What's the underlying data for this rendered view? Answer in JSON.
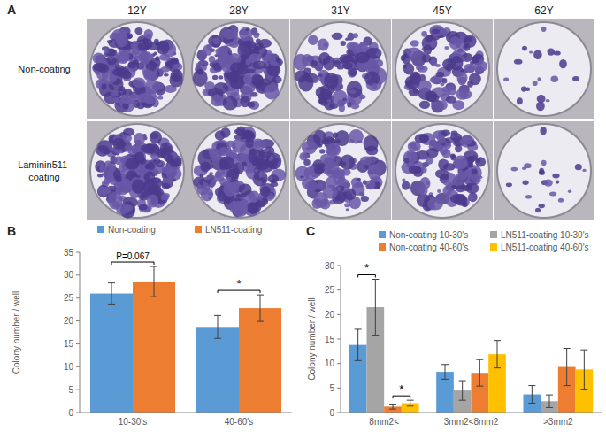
{
  "panel_a": {
    "panel_label": "A",
    "columns": [
      "12Y",
      "28Y",
      "31Y",
      "45Y",
      "62Y"
    ],
    "rows": [
      "Non-coating",
      "Laminin511-coating"
    ]
  },
  "chart_data": [
    {
      "type": "bar",
      "panel_label": "B",
      "y_label": "Colony number / well",
      "categories": [
        "10-30's",
        "40-60's"
      ],
      "series": [
        {
          "name": "Non-coating",
          "color": "#5b9bd5",
          "values": [
            26.0,
            18.7
          ],
          "errors": [
            2.3,
            2.5
          ]
        },
        {
          "name": "LN511-coating",
          "color": "#ed7d31",
          "values": [
            28.6,
            22.8
          ],
          "errors": [
            3.3,
            2.9
          ]
        }
      ],
      "ylim": [
        0,
        35
      ],
      "yticks": [
        0,
        5,
        10,
        15,
        20,
        25,
        30,
        35
      ],
      "grid": false,
      "legend": "top",
      "annotations": [
        {
          "text": "P=0.067",
          "category": 0,
          "series": [
            0,
            1
          ]
        },
        {
          "text": "*",
          "category": 1,
          "series": [
            0,
            1
          ]
        }
      ]
    },
    {
      "type": "bar",
      "panel_label": "C",
      "y_label": "Colony number / well",
      "categories": [
        "8mm2<",
        "3mm2<8mm2",
        ">3mm2"
      ],
      "series": [
        {
          "name": "Non-coating 10-30's",
          "color": "#5b9bd5",
          "values": [
            13.8,
            8.3,
            3.7
          ],
          "errors": [
            3.2,
            1.5,
            1.8
          ]
        },
        {
          "name": "LN511-coating 10-30's",
          "color": "#a5a5a5",
          "values": [
            21.5,
            4.5,
            2.3
          ],
          "errors": [
            5.7,
            2.0,
            1.3
          ]
        },
        {
          "name": "Non-coating 40-60's",
          "color": "#ed7d31",
          "values": [
            1.2,
            8.1,
            9.3
          ],
          "errors": [
            0.5,
            2.7,
            3.8
          ]
        },
        {
          "name": "LN511-coating 40-60's",
          "color": "#ffc000",
          "values": [
            1.9,
            11.9,
            8.8
          ],
          "errors": [
            0.6,
            2.8,
            4.0
          ]
        }
      ],
      "ylim": [
        0,
        30
      ],
      "yticks": [
        0,
        5,
        10,
        15,
        20,
        25,
        30
      ],
      "grid": false,
      "legend": "top",
      "annotations": [
        {
          "text": "*",
          "category": 0,
          "series": [
            0,
            1
          ]
        },
        {
          "text": "*",
          "category": 0,
          "series": [
            2,
            3
          ]
        }
      ]
    }
  ]
}
